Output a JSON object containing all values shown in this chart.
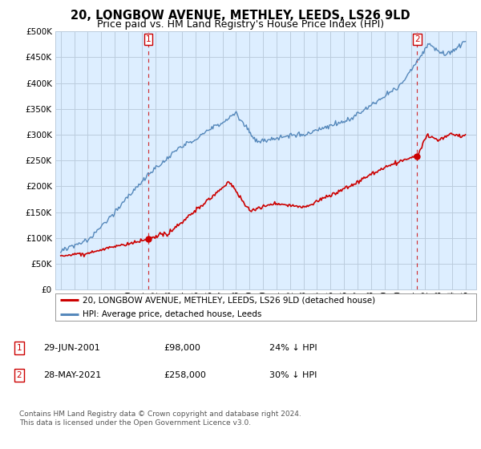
{
  "title": "20, LONGBOW AVENUE, METHLEY, LEEDS, LS26 9LD",
  "subtitle": "Price paid vs. HM Land Registry's House Price Index (HPI)",
  "legend_line1": "20, LONGBOW AVENUE, METHLEY, LEEDS, LS26 9LD (detached house)",
  "legend_line2": "HPI: Average price, detached house, Leeds",
  "footnote": "Contains HM Land Registry data © Crown copyright and database right 2024.\nThis data is licensed under the Open Government Licence v3.0.",
  "point1_label": "29-JUN-2001",
  "point1_price": "£98,000",
  "point1_hpi": "24% ↓ HPI",
  "point2_label": "28-MAY-2021",
  "point2_price": "£258,000",
  "point2_hpi": "30% ↓ HPI",
  "ylim": [
    0,
    500000
  ],
  "yticks": [
    0,
    50000,
    100000,
    150000,
    200000,
    250000,
    300000,
    350000,
    400000,
    450000,
    500000
  ],
  "background_color": "#ffffff",
  "plot_bg_color": "#ddeeff",
  "grid_color": "#bbccdd",
  "red_color": "#cc0000",
  "blue_color": "#5588bb",
  "blue_fill_color": "#aabbdd",
  "title_fontsize": 10.5,
  "subtitle_fontsize": 9,
  "sale1_x": 2001.49,
  "sale1_y": 98000,
  "sale2_x": 2021.41,
  "sale2_y": 258000,
  "xmin": 1995,
  "xmax": 2025
}
